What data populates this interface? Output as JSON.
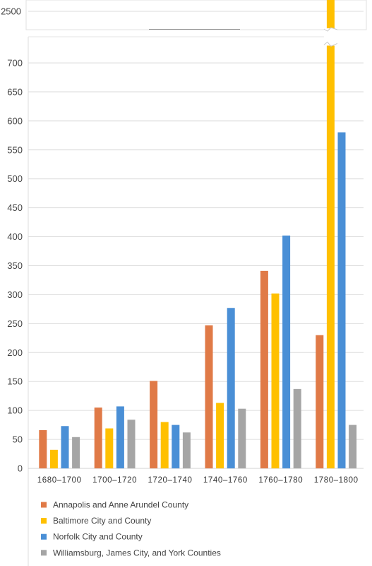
{
  "chart_data": {
    "type": "bar",
    "categories": [
      "1680–1700",
      "1700–1720",
      "1720–1740",
      "1740–1760",
      "1760–1780",
      "1780–1800"
    ],
    "series": [
      {
        "name": "Annapolis and Anne Arundel County",
        "color": "#E07A47",
        "values": [
          66,
          105,
          151,
          247,
          341,
          230
        ]
      },
      {
        "name": "Baltimore City and County",
        "color": "#FFC000",
        "values": [
          32,
          69,
          80,
          113,
          302,
          2550
        ]
      },
      {
        "name": "Norfolk City and County",
        "color": "#4A8FD6",
        "values": [
          73,
          107,
          75,
          277,
          402,
          580
        ]
      },
      {
        "name": "Williamsburg, James City, and York Counties",
        "color": "#A5A5A5",
        "values": [
          54,
          84,
          62,
          103,
          137,
          75
        ]
      }
    ],
    "yticks_lower": [
      0,
      50,
      100,
      150,
      200,
      250,
      300,
      350,
      400,
      450,
      500,
      550,
      600,
      650,
      700
    ],
    "yticks_upper": [
      2500
    ],
    "axis_break": {
      "lower_max": 730,
      "upper_label": 2500
    },
    "grid": true,
    "legend_position": "bottom"
  }
}
